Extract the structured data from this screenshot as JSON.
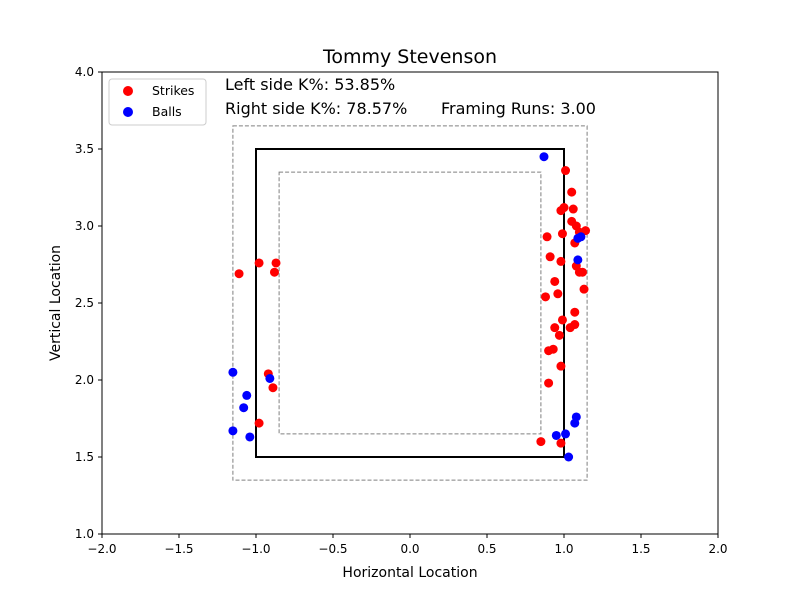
{
  "chart_data": {
    "type": "scatter",
    "title": "Tommy Stevenson",
    "xlabel": "Horizontal Location",
    "ylabel": "Vertical Location",
    "xlim": [
      -2.0,
      2.0
    ],
    "ylim": [
      1.0,
      4.0
    ],
    "xticks": [
      "−2.0",
      "−1.5",
      "−1.0",
      "−0.5",
      "0.0",
      "0.5",
      "1.0",
      "1.5",
      "2.0"
    ],
    "yticks": [
      "1.0",
      "1.5",
      "2.0",
      "2.5",
      "3.0",
      "3.5",
      "4.0"
    ],
    "grid": false,
    "legend_position": "top-left",
    "annotations": {
      "left_k": "Left side K%: 53.85%",
      "right_k": "Right side K%: 78.57%",
      "framing": "Framing Runs: 3.00"
    },
    "zones": {
      "strike_zone": {
        "x": [
          -1.0,
          1.0
        ],
        "y": [
          1.5,
          3.5
        ],
        "style": "solid"
      },
      "outer_zone": {
        "x": [
          -1.15,
          1.15
        ],
        "y": [
          1.35,
          3.65
        ],
        "style": "dashed"
      },
      "inner_zone": {
        "x": [
          -0.85,
          0.85
        ],
        "y": [
          1.65,
          3.35
        ],
        "style": "dashed"
      }
    },
    "series": [
      {
        "name": "Strikes",
        "color": "#ff0000",
        "points": [
          [
            -1.11,
            2.69
          ],
          [
            -0.98,
            2.76
          ],
          [
            -0.87,
            2.76
          ],
          [
            -0.88,
            2.7
          ],
          [
            -0.92,
            2.04
          ],
          [
            -0.89,
            1.95
          ],
          [
            -0.98,
            1.72
          ],
          [
            1.01,
            3.36
          ],
          [
            1.05,
            3.22
          ],
          [
            0.98,
            3.1
          ],
          [
            1.0,
            3.12
          ],
          [
            1.06,
            3.11
          ],
          [
            1.05,
            3.03
          ],
          [
            1.08,
            3.0
          ],
          [
            1.1,
            2.96
          ],
          [
            1.14,
            2.97
          ],
          [
            0.99,
            2.95
          ],
          [
            0.89,
            2.93
          ],
          [
            1.07,
            2.89
          ],
          [
            0.91,
            2.8
          ],
          [
            0.98,
            2.77
          ],
          [
            1.08,
            2.74
          ],
          [
            1.1,
            2.7
          ],
          [
            1.12,
            2.7
          ],
          [
            0.94,
            2.64
          ],
          [
            1.13,
            2.59
          ],
          [
            0.96,
            2.56
          ],
          [
            0.88,
            2.54
          ],
          [
            1.07,
            2.44
          ],
          [
            0.99,
            2.39
          ],
          [
            1.07,
            2.36
          ],
          [
            1.04,
            2.34
          ],
          [
            0.94,
            2.34
          ],
          [
            0.97,
            2.29
          ],
          [
            0.93,
            2.2
          ],
          [
            0.9,
            2.19
          ],
          [
            0.98,
            2.09
          ],
          [
            0.9,
            1.98
          ],
          [
            0.85,
            1.6
          ],
          [
            0.98,
            1.59
          ]
        ]
      },
      {
        "name": "Balls",
        "color": "#0000ff",
        "points": [
          [
            -1.15,
            2.05
          ],
          [
            -0.91,
            2.01
          ],
          [
            -1.06,
            1.9
          ],
          [
            -1.08,
            1.82
          ],
          [
            -1.15,
            1.67
          ],
          [
            -1.04,
            1.63
          ],
          [
            0.87,
            3.45
          ],
          [
            1.11,
            2.93
          ],
          [
            1.09,
            2.92
          ],
          [
            1.09,
            2.78
          ],
          [
            1.08,
            1.76
          ],
          [
            1.07,
            1.72
          ],
          [
            1.01,
            1.65
          ],
          [
            0.95,
            1.64
          ],
          [
            1.03,
            1.5
          ]
        ]
      }
    ]
  }
}
